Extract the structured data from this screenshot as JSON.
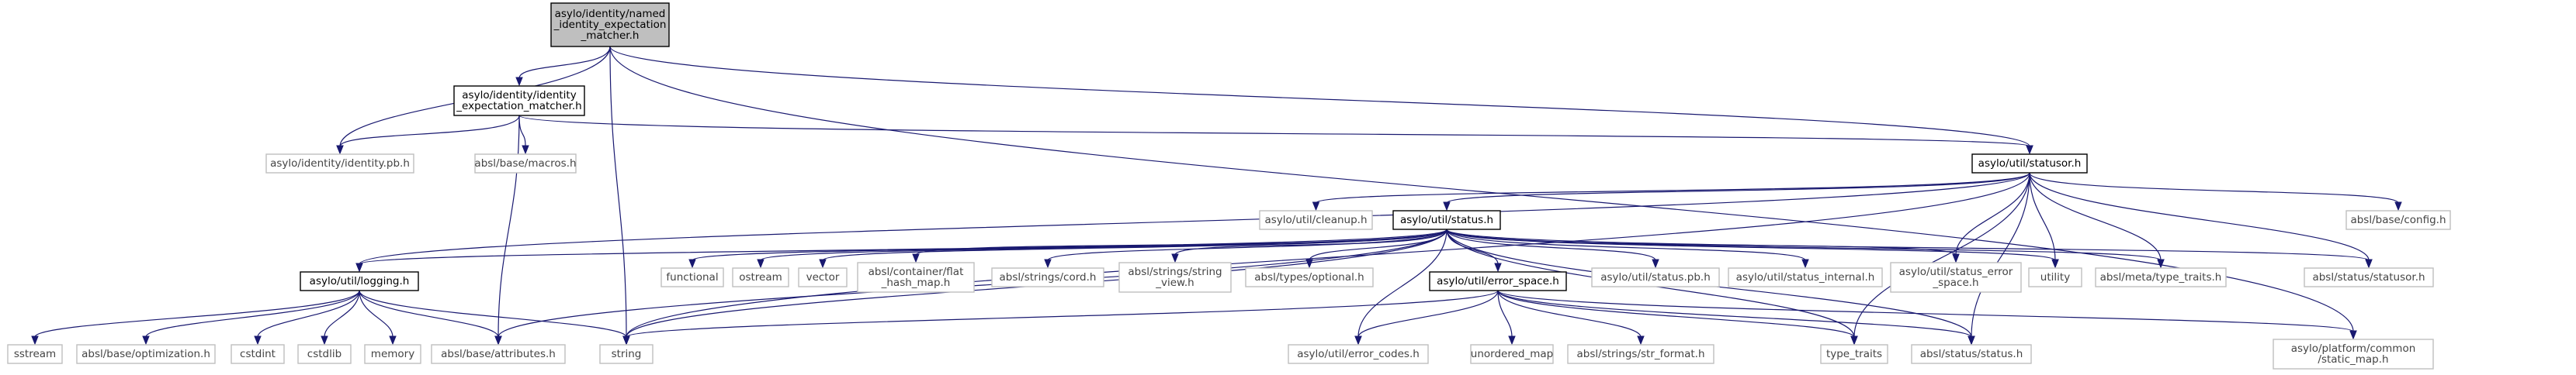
{
  "graph": {
    "colors": {
      "edge": "#191970",
      "root_fill": "#bfbfbf",
      "project_border": "#000000",
      "external_border": "#bfbfbf",
      "external_text": "#444444"
    },
    "nodes": [
      {
        "id": "named",
        "lines": [
          "asylo/identity/named",
          "_identity_expectation",
          "_matcher.h"
        ],
        "kind": "root"
      },
      {
        "id": "iem",
        "lines": [
          "asylo/identity/identity",
          "_expectation_matcher.h"
        ],
        "kind": "proj"
      },
      {
        "id": "identitypb",
        "lines": [
          "asylo/identity/identity.pb.h"
        ],
        "kind": "std"
      },
      {
        "id": "macros",
        "lines": [
          "absl/base/macros.h"
        ],
        "kind": "std"
      },
      {
        "id": "statusor",
        "lines": [
          "asylo/util/statusor.h"
        ],
        "kind": "proj"
      },
      {
        "id": "cleanup",
        "lines": [
          "asylo/util/cleanup.h"
        ],
        "kind": "std"
      },
      {
        "id": "status",
        "lines": [
          "asylo/util/status.h"
        ],
        "kind": "proj"
      },
      {
        "id": "config",
        "lines": [
          "absl/base/config.h"
        ],
        "kind": "std"
      },
      {
        "id": "logging",
        "lines": [
          "asylo/util/logging.h"
        ],
        "kind": "proj"
      },
      {
        "id": "functional",
        "lines": [
          "functional"
        ],
        "kind": "std"
      },
      {
        "id": "ostream",
        "lines": [
          "ostream"
        ],
        "kind": "std"
      },
      {
        "id": "vector",
        "lines": [
          "vector"
        ],
        "kind": "std"
      },
      {
        "id": "flathash",
        "lines": [
          "absl/container/flat",
          "_hash_map.h"
        ],
        "kind": "std"
      },
      {
        "id": "cord",
        "lines": [
          "absl/strings/cord.h"
        ],
        "kind": "std"
      },
      {
        "id": "stringview",
        "lines": [
          "absl/strings/string",
          "_view.h"
        ],
        "kind": "std"
      },
      {
        "id": "optional",
        "lines": [
          "absl/types/optional.h"
        ],
        "kind": "std"
      },
      {
        "id": "errorspace",
        "lines": [
          "asylo/util/error_space.h"
        ],
        "kind": "proj"
      },
      {
        "id": "statuspb",
        "lines": [
          "asylo/util/status.pb.h"
        ],
        "kind": "std"
      },
      {
        "id": "statusinternal",
        "lines": [
          "asylo/util/status_internal.h"
        ],
        "kind": "std"
      },
      {
        "id": "statuserrorspace",
        "lines": [
          "asylo/util/status_error",
          "_space.h"
        ],
        "kind": "std"
      },
      {
        "id": "utility",
        "lines": [
          "utility"
        ],
        "kind": "std"
      },
      {
        "id": "typetraitsmeta",
        "lines": [
          "absl/meta/type_traits.h"
        ],
        "kind": "std"
      },
      {
        "id": "abslstatusor",
        "lines": [
          "absl/status/statusor.h"
        ],
        "kind": "std"
      },
      {
        "id": "sstream",
        "lines": [
          "sstream"
        ],
        "kind": "std"
      },
      {
        "id": "optimization",
        "lines": [
          "absl/base/optimization.h"
        ],
        "kind": "std"
      },
      {
        "id": "cstdint",
        "lines": [
          "cstdint"
        ],
        "kind": "std"
      },
      {
        "id": "cstdlib",
        "lines": [
          "cstdlib"
        ],
        "kind": "std"
      },
      {
        "id": "memory",
        "lines": [
          "memory"
        ],
        "kind": "std"
      },
      {
        "id": "attributes",
        "lines": [
          "absl/base/attributes.h"
        ],
        "kind": "std"
      },
      {
        "id": "string",
        "lines": [
          "string"
        ],
        "kind": "std"
      },
      {
        "id": "errorcodes",
        "lines": [
          "asylo/util/error_codes.h"
        ],
        "kind": "std"
      },
      {
        "id": "unorderedmap",
        "lines": [
          "unordered_map"
        ],
        "kind": "std"
      },
      {
        "id": "strformat",
        "lines": [
          "absl/strings/str_format.h"
        ],
        "kind": "std"
      },
      {
        "id": "typetraits",
        "lines": [
          "type_traits"
        ],
        "kind": "std"
      },
      {
        "id": "abslstatus",
        "lines": [
          "absl/status/status.h"
        ],
        "kind": "std"
      },
      {
        "id": "staticmap",
        "lines": [
          "asylo/platform/common",
          "/static_map.h"
        ],
        "kind": "std"
      }
    ],
    "edges": [
      [
        "named",
        "iem"
      ],
      [
        "named",
        "identitypb"
      ],
      [
        "named",
        "statusor"
      ],
      [
        "named",
        "string"
      ],
      [
        "named",
        "staticmap"
      ],
      [
        "iem",
        "identitypb"
      ],
      [
        "iem",
        "macros"
      ],
      [
        "iem",
        "statusor"
      ],
      [
        "iem",
        "attributes"
      ],
      [
        "statusor",
        "cleanup"
      ],
      [
        "statusor",
        "status"
      ],
      [
        "statusor",
        "config"
      ],
      [
        "statusor",
        "logging"
      ],
      [
        "statusor",
        "statuserrorspace"
      ],
      [
        "statusor",
        "utility"
      ],
      [
        "statusor",
        "typetraitsmeta"
      ],
      [
        "statusor",
        "abslstatusor"
      ],
      [
        "statusor",
        "typetraits"
      ],
      [
        "statusor",
        "abslstatus"
      ],
      [
        "statusor",
        "string"
      ],
      [
        "status",
        "logging"
      ],
      [
        "status",
        "functional"
      ],
      [
        "status",
        "ostream"
      ],
      [
        "status",
        "vector"
      ],
      [
        "status",
        "flathash"
      ],
      [
        "status",
        "cord"
      ],
      [
        "status",
        "stringview"
      ],
      [
        "status",
        "optional"
      ],
      [
        "status",
        "errorspace"
      ],
      [
        "status",
        "statuspb"
      ],
      [
        "status",
        "statusinternal"
      ],
      [
        "status",
        "statuserrorspace"
      ],
      [
        "status",
        "utility"
      ],
      [
        "status",
        "typetraitsmeta"
      ],
      [
        "status",
        "abslstatusor"
      ],
      [
        "status",
        "abslstatus"
      ],
      [
        "status",
        "typetraits"
      ],
      [
        "status",
        "attributes"
      ],
      [
        "status",
        "string"
      ],
      [
        "status",
        "errorcodes"
      ],
      [
        "logging",
        "sstream"
      ],
      [
        "logging",
        "optimization"
      ],
      [
        "logging",
        "cstdint"
      ],
      [
        "logging",
        "cstdlib"
      ],
      [
        "logging",
        "memory"
      ],
      [
        "logging",
        "attributes"
      ],
      [
        "logging",
        "string"
      ],
      [
        "errorspace",
        "string"
      ],
      [
        "errorspace",
        "errorcodes"
      ],
      [
        "errorspace",
        "unorderedmap"
      ],
      [
        "errorspace",
        "strformat"
      ],
      [
        "errorspace",
        "typetraits"
      ],
      [
        "errorspace",
        "abslstatus"
      ],
      [
        "errorspace",
        "staticmap"
      ]
    ]
  }
}
